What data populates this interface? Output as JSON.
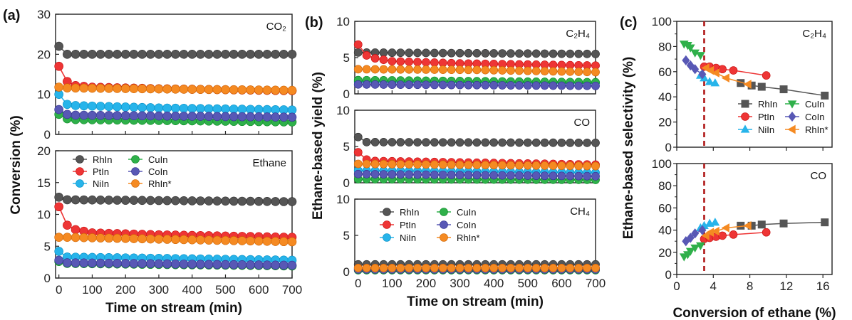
{
  "figure": {
    "panel_labels": [
      "(a)",
      "(b)",
      "(c)"
    ]
  },
  "chart_data": [
    {
      "id": "a-top",
      "type": "line",
      "annotation": "CO₂",
      "ylim": [
        0,
        30
      ],
      "yticks": [
        0,
        10,
        20,
        30
      ],
      "xlim": [
        -10,
        700
      ],
      "xticks": [],
      "series": [
        {
          "name": "RhIn",
          "color": "#555555",
          "values": [
            {
              "x": 0,
              "y": 22
            },
            {
              "x": 25,
              "y": 20
            },
            {
              "x": 50,
              "y": 20
            },
            {
              "x": 700,
              "y": 20
            }
          ]
        },
        {
          "name": "PtIn",
          "color": "#ee3535",
          "values": [
            {
              "x": 0,
              "y": 17
            },
            {
              "x": 25,
              "y": 13.2
            },
            {
              "x": 50,
              "y": 12.2
            },
            {
              "x": 100,
              "y": 11.8
            },
            {
              "x": 300,
              "y": 11.4
            },
            {
              "x": 700,
              "y": 10.9
            }
          ]
        },
        {
          "name": "NiIn",
          "color": "#27b4ea",
          "values": [
            {
              "x": 0,
              "y": 10
            },
            {
              "x": 25,
              "y": 7.5
            },
            {
              "x": 50,
              "y": 7.2
            },
            {
              "x": 300,
              "y": 6.6
            },
            {
              "x": 700,
              "y": 6.1
            }
          ]
        },
        {
          "name": "CuIn",
          "color": "#2fb04a",
          "values": [
            {
              "x": 0,
              "y": 5
            },
            {
              "x": 25,
              "y": 3.9
            },
            {
              "x": 50,
              "y": 3.7
            },
            {
              "x": 700,
              "y": 3.1
            }
          ]
        },
        {
          "name": "CoIn",
          "color": "#5858b5",
          "values": [
            {
              "x": 0,
              "y": 6.2
            },
            {
              "x": 25,
              "y": 5
            },
            {
              "x": 50,
              "y": 4.8
            },
            {
              "x": 700,
              "y": 4.3
            }
          ]
        },
        {
          "name": "RhIn*",
          "color": "#f58a22",
          "values": [
            {
              "x": 0,
              "y": 11.8
            },
            {
              "x": 25,
              "y": 11.6
            },
            {
              "x": 350,
              "y": 11.3
            },
            {
              "x": 700,
              "y": 11
            }
          ]
        }
      ]
    },
    {
      "id": "a-bottom",
      "type": "line",
      "annotation": "Ethane",
      "ylim": [
        0,
        20
      ],
      "yticks": [
        0,
        5,
        10,
        15,
        20
      ],
      "xlim": [
        -10,
        700
      ],
      "xticks": [
        0,
        100,
        200,
        300,
        400,
        500,
        600,
        700
      ],
      "xlabel": "Time on stream (min)",
      "series": [
        {
          "name": "RhIn",
          "color": "#555555",
          "values": [
            {
              "x": 0,
              "y": 12.7
            },
            {
              "x": 25,
              "y": 12.3
            },
            {
              "x": 700,
              "y": 12
            }
          ]
        },
        {
          "name": "PtIn",
          "color": "#ee3535",
          "values": [
            {
              "x": 0,
              "y": 11.2
            },
            {
              "x": 25,
              "y": 8.3
            },
            {
              "x": 50,
              "y": 7.6
            },
            {
              "x": 100,
              "y": 7.1
            },
            {
              "x": 300,
              "y": 6.8
            },
            {
              "x": 700,
              "y": 6.4
            }
          ]
        },
        {
          "name": "NiIn",
          "color": "#27b4ea",
          "values": [
            {
              "x": 0,
              "y": 4.2
            },
            {
              "x": 25,
              "y": 3.3
            },
            {
              "x": 700,
              "y": 2.8
            }
          ]
        },
        {
          "name": "CuIn",
          "color": "#2fb04a",
          "values": [
            {
              "x": 0,
              "y": 2.6
            },
            {
              "x": 25,
              "y": 2.3
            },
            {
              "x": 700,
              "y": 1.9
            }
          ]
        },
        {
          "name": "CoIn",
          "color": "#5858b5",
          "values": [
            {
              "x": 0,
              "y": 2.8
            },
            {
              "x": 25,
              "y": 2.4
            },
            {
              "x": 700,
              "y": 2
            }
          ]
        },
        {
          "name": "RhIn*",
          "color": "#f58a22",
          "values": [
            {
              "x": 0,
              "y": 6.4
            },
            {
              "x": 25,
              "y": 6.4
            },
            {
              "x": 700,
              "y": 5.7
            }
          ]
        }
      ]
    },
    {
      "id": "b-top",
      "type": "line",
      "annotation": "C₂H₄",
      "ylim": [
        0,
        10
      ],
      "yticks": [
        0,
        5,
        10
      ],
      "xlim": [
        -10,
        700
      ],
      "xticks": [],
      "series": [
        {
          "name": "RhIn",
          "color": "#555555",
          "values": [
            {
              "x": 0,
              "y": 5.7
            },
            {
              "x": 700,
              "y": 5.5
            }
          ]
        },
        {
          "name": "PtIn",
          "color": "#ee3535",
          "values": [
            {
              "x": 0,
              "y": 6.8
            },
            {
              "x": 25,
              "y": 5.3
            },
            {
              "x": 50,
              "y": 4.9
            },
            {
              "x": 100,
              "y": 4.5
            },
            {
              "x": 300,
              "y": 4.2
            },
            {
              "x": 700,
              "y": 3.9
            }
          ]
        },
        {
          "name": "NiIn",
          "color": "#27b4ea",
          "values": [
            {
              "x": 0,
              "y": 1.7
            },
            {
              "x": 700,
              "y": 1.5
            }
          ]
        },
        {
          "name": "CuIn",
          "color": "#2fb04a",
          "values": [
            {
              "x": 0,
              "y": 1.9
            },
            {
              "x": 700,
              "y": 1.6
            }
          ]
        },
        {
          "name": "CoIn",
          "color": "#5858b5",
          "values": [
            {
              "x": 0,
              "y": 1.3
            },
            {
              "x": 700,
              "y": 1.1
            }
          ]
        },
        {
          "name": "RhIn*",
          "color": "#f58a22",
          "values": [
            {
              "x": 0,
              "y": 3.4
            },
            {
              "x": 350,
              "y": 3.3
            },
            {
              "x": 700,
              "y": 3
            }
          ]
        }
      ]
    },
    {
      "id": "b-mid",
      "type": "line",
      "annotation": "CO",
      "ylim": [
        0,
        10
      ],
      "yticks": [
        0,
        5,
        10
      ],
      "xlim": [
        -10,
        700
      ],
      "xticks": [],
      "series": [
        {
          "name": "RhIn",
          "color": "#555555",
          "values": [
            {
              "x": 0,
              "y": 6.3
            },
            {
              "x": 25,
              "y": 5.6
            },
            {
              "x": 700,
              "y": 5.5
            }
          ]
        },
        {
          "name": "PtIn",
          "color": "#ee3535",
          "values": [
            {
              "x": 0,
              "y": 4.2
            },
            {
              "x": 25,
              "y": 3.2
            },
            {
              "x": 50,
              "y": 3
            },
            {
              "x": 700,
              "y": 2.5
            }
          ]
        },
        {
          "name": "NiIn",
          "color": "#27b4ea",
          "values": [
            {
              "x": 0,
              "y": 1.7
            },
            {
              "x": 700,
              "y": 1.4
            }
          ]
        },
        {
          "name": "CuIn",
          "color": "#2fb04a",
          "values": [
            {
              "x": 0,
              "y": 0.5
            },
            {
              "x": 700,
              "y": 0.4
            }
          ]
        },
        {
          "name": "CoIn",
          "color": "#5858b5",
          "values": [
            {
              "x": 0,
              "y": 1.2
            },
            {
              "x": 700,
              "y": 0.9
            }
          ]
        },
        {
          "name": "RhIn*",
          "color": "#f58a22",
          "values": [
            {
              "x": 0,
              "y": 2.6
            },
            {
              "x": 700,
              "y": 2.3
            }
          ]
        }
      ]
    },
    {
      "id": "b-bottom",
      "type": "line",
      "annotation": "CH₄",
      "ylim": [
        0,
        10
      ],
      "yticks": [
        0,
        5,
        10
      ],
      "xlim": [
        -10,
        700
      ],
      "xticks": [
        0,
        100,
        200,
        300,
        400,
        500,
        600,
        700
      ],
      "xlabel": "Time on stream (min)",
      "series": [
        {
          "name": "RhIn",
          "color": "#555555",
          "values": [
            {
              "x": 0,
              "y": 1
            },
            {
              "x": 700,
              "y": 1
            }
          ]
        },
        {
          "name": "PtIn",
          "color": "#ee3535",
          "values": [
            {
              "x": 0,
              "y": 0.5
            },
            {
              "x": 700,
              "y": 0.5
            }
          ]
        },
        {
          "name": "NiIn",
          "color": "#27b4ea",
          "values": [
            {
              "x": 0,
              "y": 0.3
            },
            {
              "x": 700,
              "y": 0.3
            }
          ]
        },
        {
          "name": "CuIn",
          "color": "#2fb04a",
          "values": [
            {
              "x": 0,
              "y": 0.2
            },
            {
              "x": 700,
              "y": 0.2
            }
          ]
        },
        {
          "name": "CoIn",
          "color": "#5858b5",
          "values": [
            {
              "x": 0,
              "y": 0.3
            },
            {
              "x": 700,
              "y": 0.3
            }
          ]
        },
        {
          "name": "RhIn*",
          "color": "#f58a22",
          "values": [
            {
              "x": 0,
              "y": 0.5
            },
            {
              "x": 700,
              "y": 0.5
            }
          ]
        }
      ]
    },
    {
      "id": "c-top",
      "type": "line",
      "annotation": "C₂H₄",
      "ylim": [
        0,
        100
      ],
      "yticks": [
        0,
        20,
        40,
        60,
        80,
        100
      ],
      "xlim": [
        0,
        17
      ],
      "xticks": [],
      "reference_x": 3,
      "series": [
        {
          "name": "RhIn",
          "color": "#555555",
          "marker": "square",
          "values": [
            {
              "x": 7,
              "y": 51
            },
            {
              "x": 8.2,
              "y": 49
            },
            {
              "x": 9.3,
              "y": 48
            },
            {
              "x": 11.7,
              "y": 46
            },
            {
              "x": 16.2,
              "y": 41
            }
          ]
        },
        {
          "name": "PtIn",
          "color": "#ee3535",
          "marker": "circle",
          "values": [
            {
              "x": 3,
              "y": 64
            },
            {
              "x": 3.6,
              "y": 64
            },
            {
              "x": 4.3,
              "y": 63
            },
            {
              "x": 5,
              "y": 62
            },
            {
              "x": 6.2,
              "y": 61
            },
            {
              "x": 9.8,
              "y": 57
            }
          ]
        },
        {
          "name": "NiIn",
          "color": "#27b4ea",
          "marker": "triangle-up",
          "values": [
            {
              "x": 2.6,
              "y": 57
            },
            {
              "x": 3,
              "y": 55
            },
            {
              "x": 3.6,
              "y": 52
            },
            {
              "x": 4.2,
              "y": 51
            }
          ]
        },
        {
          "name": "CuIn",
          "color": "#2fb04a",
          "marker": "triangle-down",
          "values": [
            {
              "x": 0.8,
              "y": 82
            },
            {
              "x": 1.2,
              "y": 81
            },
            {
              "x": 1.5,
              "y": 79
            },
            {
              "x": 2,
              "y": 75
            },
            {
              "x": 2.6,
              "y": 73
            }
          ]
        },
        {
          "name": "CoIn",
          "color": "#5858b5",
          "marker": "diamond",
          "values": [
            {
              "x": 1,
              "y": 69
            },
            {
              "x": 1.5,
              "y": 65
            },
            {
              "x": 2,
              "y": 62
            },
            {
              "x": 2.8,
              "y": 58
            }
          ]
        },
        {
          "name": "RhIn*",
          "color": "#f58a22",
          "marker": "triangle-left",
          "values": [
            {
              "x": 3.2,
              "y": 63
            },
            {
              "x": 3.7,
              "y": 61
            },
            {
              "x": 4.3,
              "y": 59
            },
            {
              "x": 5.4,
              "y": 55
            },
            {
              "x": 7.8,
              "y": 50
            }
          ]
        }
      ]
    },
    {
      "id": "c-bottom",
      "type": "line",
      "annotation": "CO",
      "ylim": [
        0,
        100
      ],
      "yticks": [
        0,
        20,
        40,
        60,
        80,
        100
      ],
      "xlim": [
        0,
        17
      ],
      "xticks": [
        0,
        4,
        8,
        12,
        16
      ],
      "xlabel": "Conversion of ethane (%)",
      "reference_x": 3,
      "series": [
        {
          "name": "RhIn",
          "color": "#555555",
          "marker": "square",
          "values": [
            {
              "x": 7,
              "y": 44
            },
            {
              "x": 8.2,
              "y": 44
            },
            {
              "x": 9.3,
              "y": 45
            },
            {
              "x": 11.7,
              "y": 46
            },
            {
              "x": 16.2,
              "y": 47
            }
          ]
        },
        {
          "name": "PtIn",
          "color": "#ee3535",
          "marker": "circle",
          "values": [
            {
              "x": 3,
              "y": 32
            },
            {
              "x": 3.6,
              "y": 33
            },
            {
              "x": 4.3,
              "y": 34
            },
            {
              "x": 5,
              "y": 35
            },
            {
              "x": 6.2,
              "y": 36
            },
            {
              "x": 9.8,
              "y": 38
            }
          ]
        },
        {
          "name": "NiIn",
          "color": "#27b4ea",
          "marker": "triangle-up",
          "values": [
            {
              "x": 2.6,
              "y": 42
            },
            {
              "x": 3,
              "y": 44
            },
            {
              "x": 3.6,
              "y": 46
            },
            {
              "x": 4.2,
              "y": 47
            }
          ]
        },
        {
          "name": "CuIn",
          "color": "#2fb04a",
          "marker": "triangle-down",
          "values": [
            {
              "x": 0.8,
              "y": 16
            },
            {
              "x": 1.2,
              "y": 18
            },
            {
              "x": 1.5,
              "y": 21
            },
            {
              "x": 2,
              "y": 24
            },
            {
              "x": 2.6,
              "y": 26
            }
          ]
        },
        {
          "name": "CoIn",
          "color": "#5858b5",
          "marker": "diamond",
          "values": [
            {
              "x": 1,
              "y": 30
            },
            {
              "x": 1.5,
              "y": 33
            },
            {
              "x": 2,
              "y": 37
            },
            {
              "x": 2.8,
              "y": 40
            }
          ]
        },
        {
          "name": "RhIn*",
          "color": "#f58a22",
          "marker": "triangle-left",
          "values": [
            {
              "x": 3.2,
              "y": 35
            },
            {
              "x": 3.7,
              "y": 38
            },
            {
              "x": 4.3,
              "y": 39
            },
            {
              "x": 5.4,
              "y": 42
            },
            {
              "x": 7.8,
              "y": 44
            }
          ]
        }
      ]
    }
  ],
  "axis_titles": {
    "a_y": "Conversion (%)",
    "b_y": "Ethane-based yield (%)",
    "c_y": "Ethane-based selectivity (%)"
  },
  "legends": {
    "a": [
      "RhIn",
      "CuIn",
      "PtIn",
      "CoIn",
      "NiIn",
      "RhIn*"
    ],
    "b": [
      "RhIn",
      "CuIn",
      "PtIn",
      "CoIn",
      "NiIn",
      "RhIn*"
    ],
    "c": [
      "RhIn",
      "CuIn",
      "PtIn",
      "CoIn",
      "NiIn",
      "RhIn*"
    ]
  }
}
